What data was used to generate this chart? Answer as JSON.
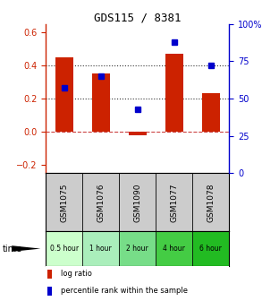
{
  "title": "GDS115 / 8381",
  "samples": [
    "GSM1075",
    "GSM1076",
    "GSM1090",
    "GSM1077",
    "GSM1078"
  ],
  "time_labels": [
    "0.5 hour",
    "1 hour",
    "2 hour",
    "4 hour",
    "6 hour"
  ],
  "time_colors": [
    "#ccffcc",
    "#aaeebb",
    "#77dd88",
    "#44cc44",
    "#22bb22"
  ],
  "log_ratios": [
    0.45,
    0.35,
    -0.02,
    0.47,
    0.23
  ],
  "percentile_ranks": [
    57,
    65,
    43,
    88,
    72
  ],
  "bar_color": "#cc2200",
  "dot_color": "#0000cc",
  "ylim_left": [
    -0.25,
    0.65
  ],
  "ylim_right": [
    0,
    100
  ],
  "yticks_left": [
    -0.2,
    0.0,
    0.2,
    0.4,
    0.6
  ],
  "yticks_right": [
    0,
    25,
    50,
    75,
    100
  ],
  "hlines": [
    0.0,
    0.2,
    0.4
  ],
  "hline_styles": [
    "--",
    ":",
    ":"
  ],
  "hline_colors": [
    "#cc4444",
    "#333333",
    "#333333"
  ],
  "background_color": "#ffffff",
  "label_color_left": "#cc2200",
  "label_color_right": "#0000cc",
  "bar_width": 0.5,
  "legend_log_ratio": "log ratio",
  "legend_percentile": "percentile rank within the sample",
  "sample_bg": "#cccccc",
  "spine_color": "#000000"
}
